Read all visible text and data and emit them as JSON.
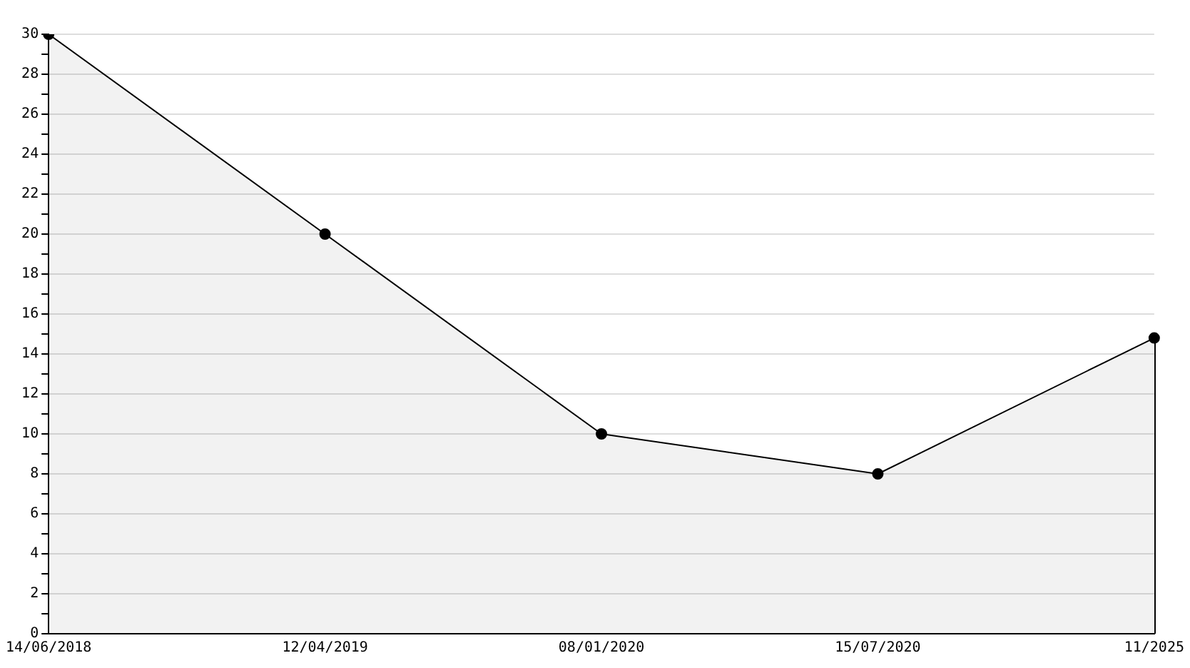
{
  "chart_data": {
    "type": "area",
    "categories": [
      "14/06/2018",
      "12/04/2019",
      "08/01/2020",
      "15/07/2020",
      "11/2025"
    ],
    "series": [
      {
        "color": "#000000",
        "values": [
          30,
          20,
          10,
          8,
          14.8
        ]
      }
    ],
    "ylim": [
      0,
      30
    ],
    "yticks": [
      0,
      {
        "value": 1,
        "label": null
      },
      2,
      {
        "value": 3,
        "label": null
      },
      4,
      {
        "value": 5,
        "label": null
      },
      6,
      {
        "value": 7,
        "label": null
      },
      8,
      {
        "value": 9,
        "label": null
      },
      10,
      {
        "value": 11,
        "label": null
      },
      12,
      {
        "value": 13,
        "label": null
      },
      14,
      {
        "value": 15,
        "label": null
      },
      16,
      {
        "value": 17,
        "label": null
      },
      18,
      {
        "value": 19,
        "label": null
      },
      20,
      {
        "value": 21,
        "label": null
      },
      22,
      {
        "value": 23,
        "label": null
      },
      24,
      {
        "value": 25,
        "label": null
      },
      26,
      {
        "value": 27,
        "label": null
      },
      28,
      {
        "value": 29,
        "label": null
      },
      30
    ],
    "grid": "y",
    "legend": false,
    "marker": "circle",
    "line_style": "solid"
  }
}
